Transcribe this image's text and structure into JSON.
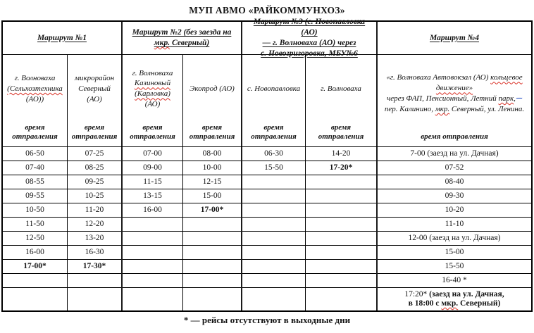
{
  "title": "МУП АВМО «РАЙКОММУНХОЗ»",
  "labels": {
    "departure": "время отправления",
    "footnote": "* — рейсы отсутствуют в выходные дни",
    "deletion_mark": "·······"
  },
  "routes": {
    "r1": "Маршрут №1",
    "r2_l1": "Маршрут №2 (без заезда на ",
    "r2_wavy": "мкр.",
    "r2_rest": " Северный)",
    "r3_l1": "Маршрут №3 (с. Новопавловка (АО)",
    "r3_l2": "— г. Волноваха (АО) через",
    "r3_l3": "с. Новогригоровка, МБУ№6",
    "r4": "Маршрут №4"
  },
  "stations": {
    "s1_l1": "г. Волноваха",
    "s1_l2": "(Сельхозтехника",
    "s1_l3": "(АО))",
    "s2_l1": "микрорайон",
    "s2_l2": "Северный",
    "s2_l3": "(АО)",
    "s3_l1": "г. Волноваха",
    "s3_l2": "Казиновый",
    "s3_l3": "(Карловка)",
    "s3_l4": "(АО)",
    "s4": "Экопрод (АО)",
    "s5": "с. Новопавловка",
    "s6": "г. Волноваха",
    "s7_l1a": "«г. Волноваха Автовокзал (АО) ",
    "s7_l1b": "кольцевое движение»",
    "s7_l2a": "через ФАП, Пенсионный, Летний ",
    "s7_l2b": "парк",
    "s7_l2c": ",",
    "s7_l3a": "пер. Калинино, ",
    "s7_l3b": "мкр.",
    "s7_l3c": " Северный, ул. Ленина."
  },
  "schedule": {
    "columns": [
      [
        "06-50",
        "07-40",
        "08-55",
        "09-55",
        "10-50",
        "11-50",
        "12-50",
        "16-00",
        {
          "t": "17-00*",
          "bold": true
        },
        "",
        ""
      ],
      [
        "07-25",
        "08-25",
        "09-25",
        "10-25",
        "11-20",
        "12-20",
        "13-20",
        "16-30",
        {
          "t": "17-30*",
          "bold": true
        },
        "",
        ""
      ],
      [
        "07-00",
        "09-00",
        "11-15",
        "13-15",
        "16-00",
        "",
        "",
        "",
        "",
        "",
        ""
      ],
      [
        "08-00",
        "10-00",
        "12-15",
        "15-00",
        {
          "t": "17-00*",
          "bold": true
        },
        "",
        "",
        "",
        "",
        "",
        ""
      ],
      [
        "06-30",
        "15-50",
        "",
        "",
        "",
        "",
        "",
        "",
        "",
        "",
        ""
      ],
      [
        "14-20",
        {
          "t": "17-20*",
          "bold": true
        },
        "",
        "",
        "",
        "",
        "",
        "",
        "",
        "",
        ""
      ],
      [
        "7-00 (заезд на ул. Дачная)",
        "07-52",
        "08-40",
        "09-30",
        "10-20",
        "11-10",
        "12-00 (заезд на ул. Дачная)",
        "15-00",
        "15-50",
        "16-40 *",
        {
          "parts": [
            {
              "t": "17:20* "
            },
            {
              "t": "(заезд на ул. Дачная,",
              "bold": true
            },
            {
              "br": true
            },
            {
              "t": "в 18:00 с ",
              "bold": true
            },
            {
              "t": "мкр.",
              "bold": true,
              "wavy": true
            },
            {
              "t": " Северный)",
              "bold": true
            }
          ]
        }
      ]
    ]
  }
}
